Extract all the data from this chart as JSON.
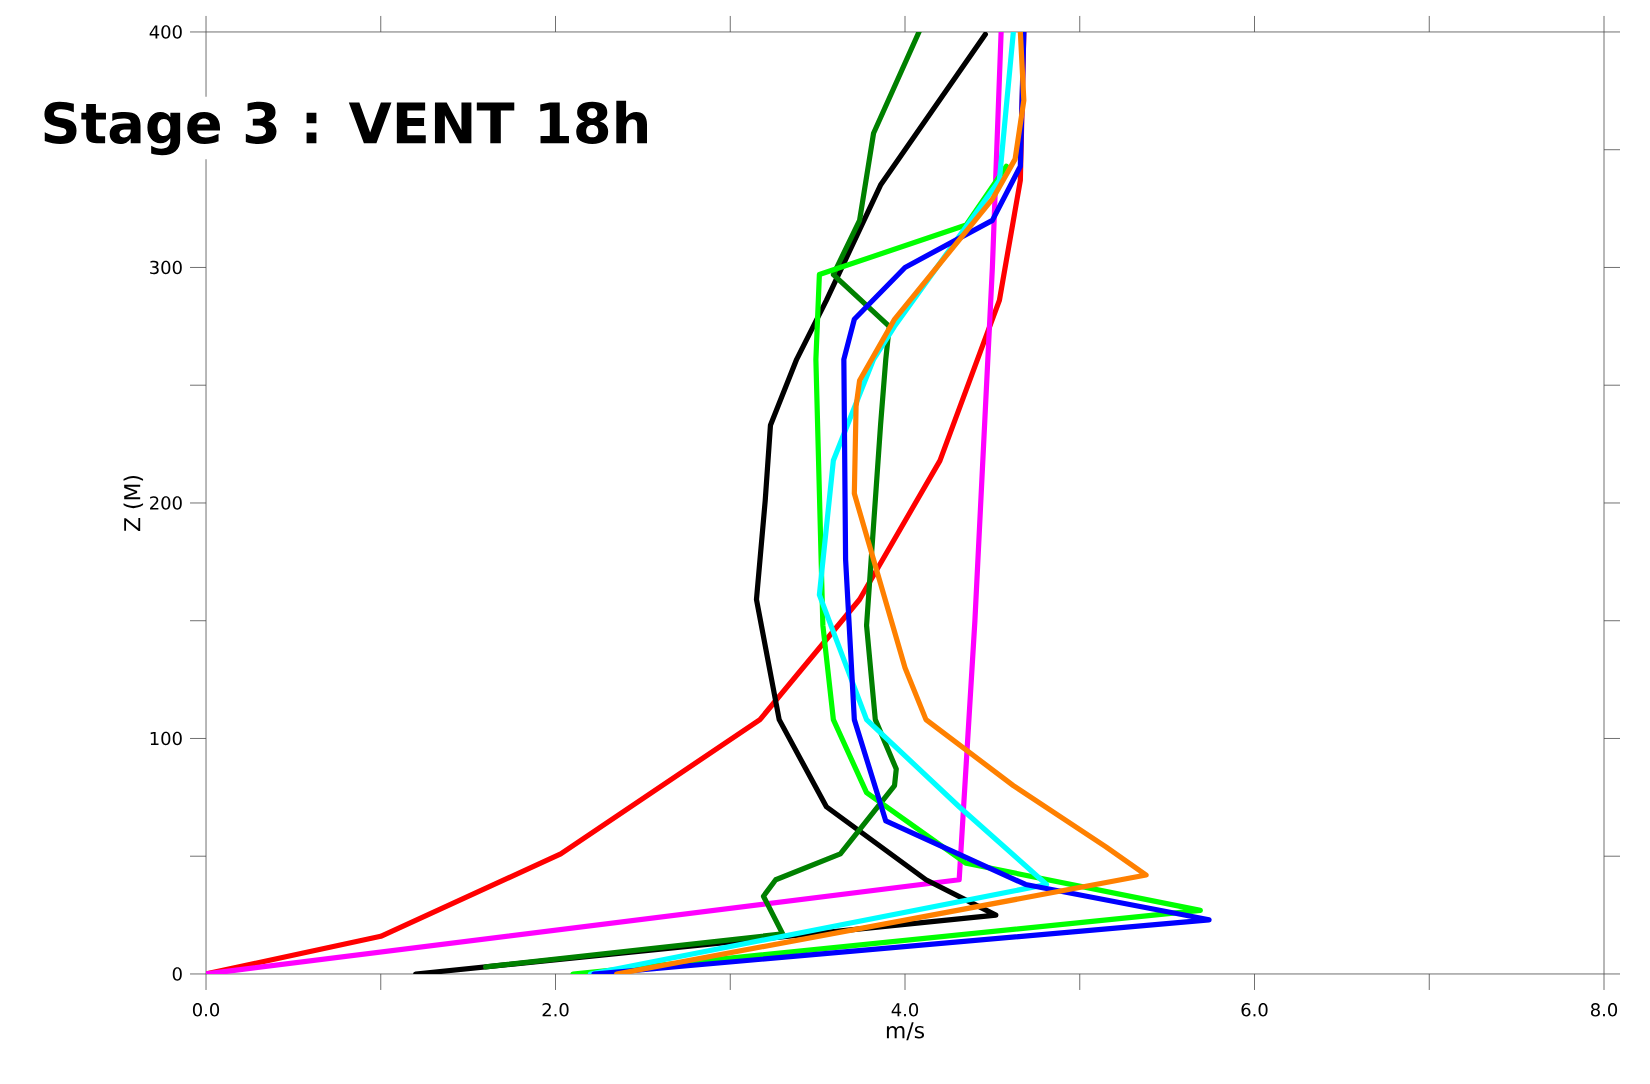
{
  "chart_data": {
    "type": "line",
    "title": "Stage 3 : VENT 18h",
    "xlabel": "m/s",
    "ylabel": "Z (M)",
    "xlim": [
      0,
      8
    ],
    "ylim": [
      0,
      400
    ],
    "xticks": [
      {
        "value": 0,
        "label": "0.0"
      },
      {
        "value": 1,
        "label": null
      },
      {
        "value": 2,
        "label": "2.0"
      },
      {
        "value": 3,
        "label": null
      },
      {
        "value": 4,
        "label": "4.0"
      },
      {
        "value": 5,
        "label": null
      },
      {
        "value": 6,
        "label": "6.0"
      },
      {
        "value": 7,
        "label": null
      },
      {
        "value": 8,
        "label": "8.0"
      }
    ],
    "yticks": [
      0,
      {
        "value": 50,
        "label": null
      },
      100,
      {
        "value": 150,
        "label": null
      },
      200,
      {
        "value": 250,
        "label": null
      },
      300,
      {
        "value": 350,
        "label": null
      },
      400
    ],
    "series": [
      {
        "color": "#ff0000",
        "x": [
          0,
          1.0,
          2.03,
          3.17,
          3.74,
          4.2,
          4.54,
          4.66,
          4.68
        ],
        "values": [
          0,
          16,
          51,
          108,
          159,
          218,
          286,
          337,
          400
        ]
      },
      {
        "color": "#ff00ff",
        "x": [
          0,
          4.31,
          4.4,
          4.5,
          4.55
        ],
        "values": [
          0,
          40,
          150,
          300,
          400
        ]
      },
      {
        "color": "#000000",
        "x": [
          1.2,
          4.52,
          4.12,
          3.55,
          3.28,
          3.15,
          3.2,
          3.23,
          3.38,
          3.55,
          3.86,
          4.46
        ],
        "values": [
          0,
          25,
          40,
          71,
          108,
          159,
          201,
          233,
          261,
          286,
          335,
          399
        ]
      },
      {
        "color": "#008000",
        "x": [
          1.6,
          3.3,
          3.19,
          3.26,
          3.63,
          3.94,
          3.95,
          3.83,
          3.78,
          3.86,
          3.89,
          3.91,
          3.59,
          3.74,
          3.82,
          4.08
        ],
        "values": [
          3,
          17,
          33,
          40,
          51,
          80,
          87,
          108,
          148,
          233,
          261,
          275,
          297,
          320,
          357,
          400
        ]
      },
      {
        "color": "#00ff00",
        "x": [
          2.1,
          5.69,
          4.35,
          3.78,
          3.59,
          3.53,
          3.49,
          3.51,
          4.35,
          4.58
        ],
        "values": [
          0,
          27,
          47,
          77,
          108,
          148,
          261,
          297,
          318,
          343
        ]
      },
      {
        "color": "#00ffff",
        "x": [
          2.2,
          4.81,
          4.31,
          3.78,
          3.51,
          3.59,
          3.82,
          3.94,
          4.54,
          4.62
        ],
        "values": [
          0,
          38,
          71,
          108,
          161,
          218,
          261,
          275,
          337,
          400
        ]
      },
      {
        "color": "#0000ff",
        "x": [
          2.22,
          5.74,
          4.69,
          3.89,
          3.71,
          3.66,
          3.65,
          3.71,
          4.0,
          4.5,
          4.66,
          4.68
        ],
        "values": [
          0,
          23,
          38,
          65,
          108,
          176,
          261,
          278,
          300,
          320,
          343,
          400
        ]
      },
      {
        "color": "#ff8000",
        "x": [
          2.35,
          5.38,
          5.15,
          4.62,
          4.12,
          4.0,
          3.71,
          3.72,
          3.74,
          3.94,
          4.5,
          4.63,
          4.68,
          4.66
        ],
        "values": [
          0,
          42,
          54,
          80,
          108,
          130,
          204,
          241,
          252,
          278,
          329,
          346,
          371,
          400
        ]
      }
    ]
  }
}
